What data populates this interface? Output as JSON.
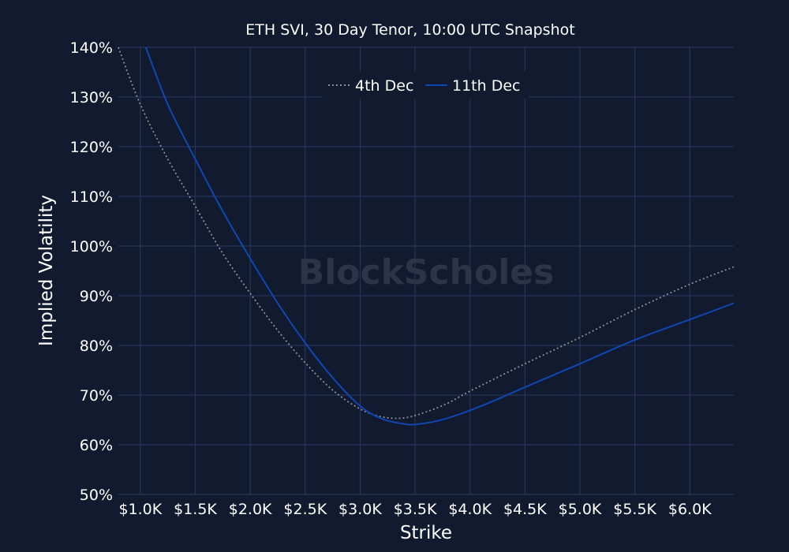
{
  "watermark": "BlockScholes",
  "chart_data": {
    "type": "line",
    "title": "ETH SVI, 30 Day Tenor, 10:00 UTC Snapshot",
    "xlabel": "Strike",
    "ylabel": "Implied Volatility",
    "xlim": [
      800,
      6400
    ],
    "ylim": [
      50,
      140
    ],
    "x_ticks": [
      1000,
      1500,
      2000,
      2500,
      3000,
      3500,
      4000,
      4500,
      5000,
      5500,
      6000
    ],
    "x_tick_labels": [
      "$1.0K",
      "$1.5K",
      "$2.0K",
      "$2.5K",
      "$3.0K",
      "$3.5K",
      "$4.0K",
      "$4.5K",
      "$5.0K",
      "$5.5K",
      "$6.0K"
    ],
    "y_ticks": [
      50,
      60,
      70,
      80,
      90,
      100,
      110,
      120,
      130,
      140
    ],
    "y_tick_labels": [
      "50%",
      "60%",
      "70%",
      "80%",
      "90%",
      "100%",
      "110%",
      "120%",
      "130%",
      "140%"
    ],
    "grid": true,
    "legend_position": "top-center",
    "series": [
      {
        "name": "4th Dec",
        "color": "#8a8f99",
        "style": "dotted",
        "x": [
          800,
          1000,
          1250,
          1500,
          1750,
          2000,
          2250,
          2500,
          2750,
          3000,
          3200,
          3400,
          3600,
          3800,
          4000,
          4500,
          5000,
          5500,
          6000,
          6400
        ],
        "y": [
          140,
          128.5,
          117.5,
          108,
          98.5,
          90.5,
          83,
          76.5,
          71,
          67.2,
          65.6,
          65.4,
          66.6,
          68.4,
          70.8,
          76.3,
          81.6,
          87.2,
          92.3,
          95.8
        ]
      },
      {
        "name": "11th Dec",
        "color": "#0f47b3",
        "style": "solid",
        "x": [
          1050,
          1250,
          1500,
          1750,
          2000,
          2250,
          2500,
          2750,
          3000,
          3200,
          3400,
          3500,
          3700,
          3900,
          4200,
          4500,
          5000,
          5500,
          6000,
          6400
        ],
        "y": [
          140,
          128.5,
          117.5,
          107,
          97.5,
          88.5,
          80.5,
          73.5,
          67.8,
          65.2,
          64.2,
          64.1,
          64.8,
          66.1,
          68.7,
          71.6,
          76.3,
          81.1,
          85.2,
          88.5
        ]
      }
    ]
  }
}
